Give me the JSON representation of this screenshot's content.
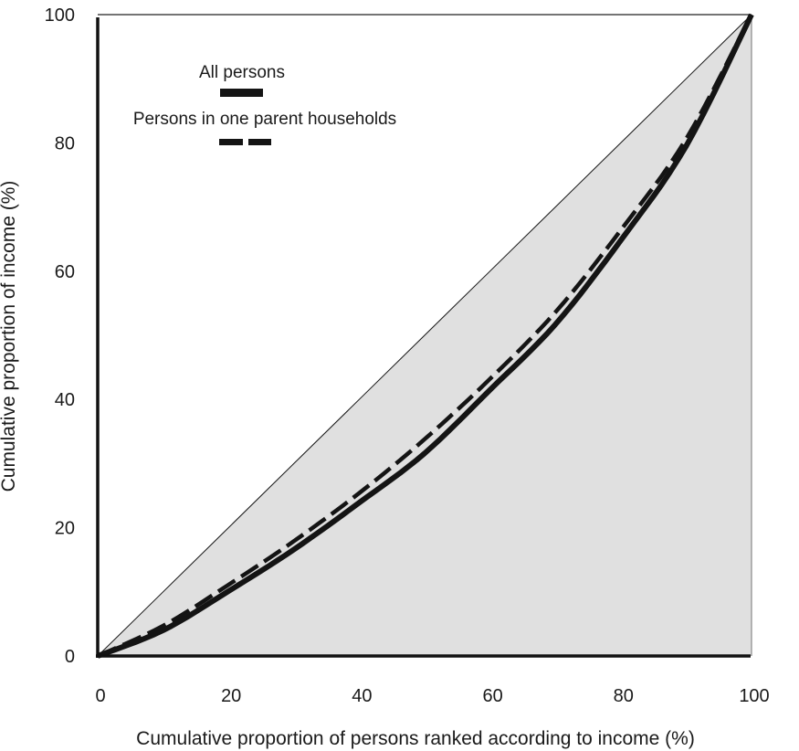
{
  "chart_data": {
    "type": "line",
    "title": "",
    "xlabel": "Cumulative proportion of persons ranked according to income (%)",
    "ylabel": "Cumulative proportion of income (%)",
    "xlim": [
      0,
      100
    ],
    "ylim": [
      0,
      100
    ],
    "x_ticks": [
      "0",
      "20",
      "40",
      "60",
      "80",
      "100"
    ],
    "y_ticks": [
      "0",
      "20",
      "40",
      "60",
      "80",
      "100"
    ],
    "grid": false,
    "legend_position": "upper-left inside",
    "x": [
      0,
      10,
      20,
      30,
      40,
      50,
      60,
      70,
      80,
      90,
      100
    ],
    "series": [
      {
        "name": "Line of equality",
        "style": "thin-solid",
        "values": [
          0,
          10,
          20,
          30,
          40,
          50,
          60,
          70,
          80,
          90,
          100
        ]
      },
      {
        "name": "All persons",
        "style": "thick-solid",
        "values": [
          0,
          4.0,
          10.1,
          16.6,
          23.9,
          31.6,
          41.5,
          51.7,
          64.8,
          79.5,
          100
        ]
      },
      {
        "name": "Persons in one parent households",
        "style": "thick-dashed",
        "values": [
          0,
          4.7,
          11.1,
          17.9,
          25.4,
          33.8,
          43.2,
          53.6,
          66.4,
          80.6,
          100
        ]
      }
    ],
    "fill": "area under line of equality shaded light gray"
  },
  "legend": {
    "items": [
      {
        "label": "All persons"
      },
      {
        "label": "Persons in one parent households"
      }
    ]
  },
  "colors": {
    "fill": "#e0e0e0",
    "line": "#141414",
    "frame": "#777777"
  }
}
